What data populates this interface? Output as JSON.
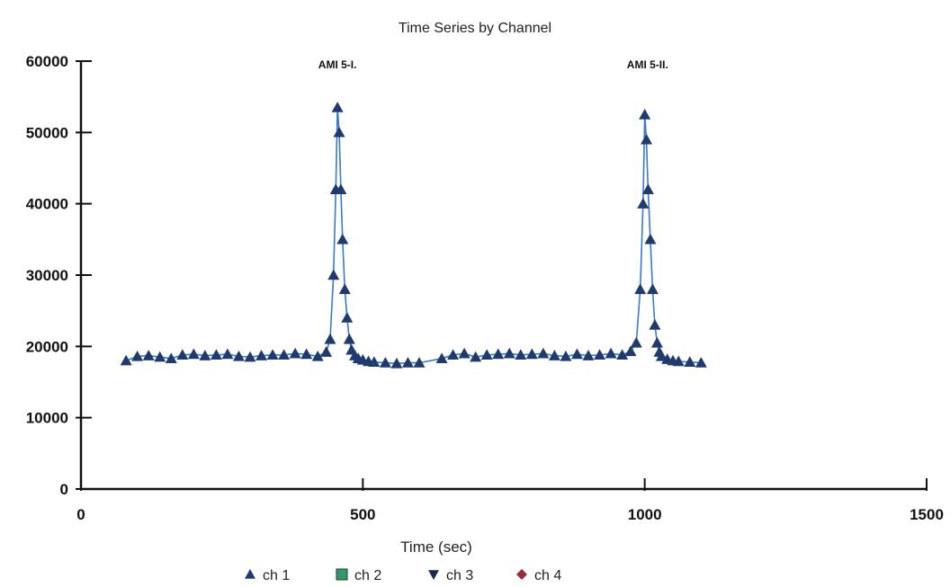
{
  "chart_data": {
    "type": "line",
    "title": "Time Series by Channel",
    "xlabel": "Time (sec)",
    "ylabel": "",
    "xlim": [
      0,
      1500
    ],
    "ylim": [
      0,
      60000
    ],
    "x_ticks": [
      0,
      500,
      1000,
      1500
    ],
    "y_ticks": [
      0,
      10000,
      20000,
      30000,
      40000,
      50000,
      60000
    ],
    "x_tick_labels": [
      "0",
      "500",
      "1000",
      "1500"
    ],
    "y_tick_labels": [
      "0",
      "10000",
      "20000",
      "30000",
      "40000",
      "50000",
      "60000"
    ],
    "grid": false,
    "legend_position": "bottom",
    "annotations": [
      {
        "text": "AMI 5-I.",
        "x": 455,
        "y": 60000
      },
      {
        "text": "AMI 5-II.",
        "x": 1005,
        "y": 60000
      }
    ],
    "series": [
      {
        "name": "ch 1",
        "marker": "triangle-up",
        "color": "#1f3a6e",
        "x": [
          80,
          100,
          120,
          140,
          160,
          180,
          200,
          220,
          240,
          260,
          280,
          300,
          320,
          340,
          360,
          380,
          400,
          420,
          435,
          442,
          448,
          452,
          455,
          458,
          461,
          464,
          468,
          472,
          476,
          480,
          486,
          492,
          500,
          510,
          520,
          540,
          560,
          580,
          600,
          640,
          660,
          680,
          700,
          720,
          740,
          760,
          780,
          800,
          820,
          840,
          860,
          880,
          900,
          920,
          940,
          960,
          975,
          985,
          992,
          997,
          1000,
          1003,
          1006,
          1010,
          1014,
          1018,
          1022,
          1026,
          1030,
          1040,
          1050,
          1060,
          1080,
          1100
        ],
        "y": [
          18000,
          18600,
          18700,
          18500,
          18300,
          18800,
          18900,
          18700,
          18800,
          18900,
          18600,
          18500,
          18700,
          18800,
          18800,
          19000,
          18900,
          18600,
          19200,
          21000,
          30000,
          42000,
          53500,
          50000,
          42000,
          35000,
          28000,
          24000,
          21000,
          19500,
          18700,
          18300,
          18100,
          17900,
          17800,
          17700,
          17600,
          17700,
          17700,
          18300,
          18800,
          19000,
          18500,
          18800,
          18900,
          19000,
          18800,
          18900,
          19000,
          18700,
          18600,
          18900,
          18700,
          18800,
          19000,
          18800,
          19300,
          20500,
          28000,
          40000,
          52500,
          49000,
          42000,
          35000,
          28000,
          23000,
          20500,
          19200,
          18600,
          18200,
          18000,
          17900,
          17800,
          17700
        ]
      },
      {
        "name": "ch 2",
        "marker": "square",
        "color": "#2e9b6a",
        "x": [],
        "y": []
      },
      {
        "name": "ch 3",
        "marker": "triangle-down",
        "color": "#1a2a44",
        "x": [],
        "y": []
      },
      {
        "name": "ch 4",
        "marker": "diamond",
        "color": "#9b2a3a",
        "x": [],
        "y": []
      }
    ]
  }
}
